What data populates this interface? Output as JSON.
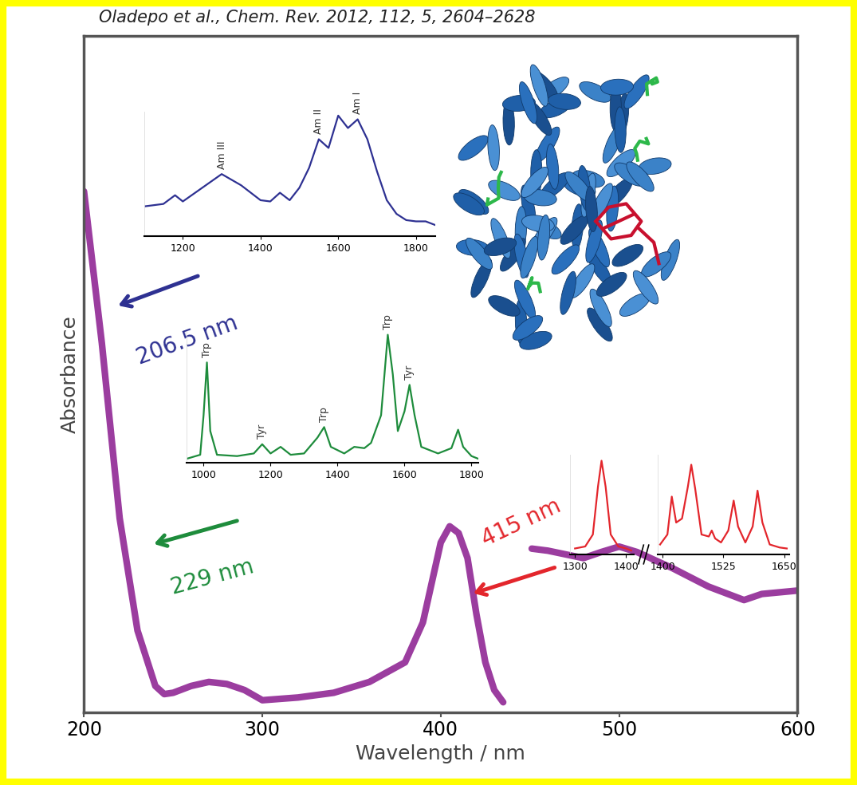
{
  "chart_data": [
    {
      "type": "line",
      "title": "Oladepo et al., Chem. Rev. 2012, 112, 5, 2604–2628",
      "x_label": "Wavelength / nm",
      "y_label": "Absorbance",
      "x": [
        200,
        210,
        220,
        230,
        240,
        245,
        250,
        260,
        270,
        280,
        290,
        300,
        310,
        320,
        340,
        360,
        380,
        390,
        395,
        400,
        405,
        410,
        415,
        420,
        425,
        430,
        435,
        442,
        451,
        460,
        480,
        490,
        500,
        510,
        530,
        550,
        570,
        580,
        600
      ],
      "values": [
        0.77,
        0.546,
        0.287,
        0.121,
        0.039,
        0.027,
        0.029,
        0.039,
        0.045,
        0.042,
        0.033,
        0.018,
        0.02,
        0.022,
        0.029,
        0.045,
        0.074,
        0.133,
        0.192,
        0.251,
        0.275,
        0.265,
        0.228,
        0.145,
        0.074,
        0.033,
        0.015,
        null,
        0.242,
        0.239,
        0.228,
        0.237,
        0.245,
        0.237,
        0.213,
        0.186,
        0.166,
        0.175,
        0.18
      ],
      "color": "#9b3d9f",
      "xlim": [
        200,
        600
      ],
      "xticks": [
        200,
        300,
        400,
        500,
        600
      ],
      "ylim": [
        0,
        1
      ],
      "tick_labels": "x",
      "annotations": [
        {
          "text": "206.5 nm",
          "color": "#2e3192"
        },
        {
          "text": "229 nm",
          "color": "#1e8c3c"
        },
        {
          "text": "415 nm",
          "color": "#e3262c"
        }
      ]
    },
    {
      "type": "line",
      "x": [
        1100,
        1150,
        1180,
        1200,
        1250,
        1300,
        1350,
        1400,
        1425,
        1450,
        1475,
        1500,
        1525,
        1550,
        1575,
        1600,
        1625,
        1650,
        1675,
        1700,
        1725,
        1750,
        1775,
        1800,
        1825,
        1850
      ],
      "values": [
        0.24,
        0.26,
        0.33,
        0.28,
        0.39,
        0.5,
        0.41,
        0.29,
        0.28,
        0.35,
        0.29,
        0.39,
        0.55,
        0.78,
        0.71,
        0.97,
        0.87,
        0.94,
        0.78,
        0.52,
        0.29,
        0.18,
        0.13,
        0.12,
        0.12,
        0.09
      ],
      "color": "#2e3192",
      "xlim": [
        1100,
        1850
      ],
      "xticks": [
        1200,
        1400,
        1600,
        1800
      ],
      "ylim": [
        0,
        1
      ],
      "tick_labels": "x",
      "peak_labels": [
        {
          "x": 1300,
          "label": "Am III"
        },
        {
          "x": 1550,
          "label": "Am II"
        },
        {
          "x": 1650,
          "label": "Am I"
        }
      ]
    },
    {
      "type": "line",
      "x": [
        950,
        990,
        1000,
        1010,
        1020,
        1040,
        1100,
        1150,
        1175,
        1200,
        1230,
        1260,
        1300,
        1340,
        1360,
        1380,
        1420,
        1450,
        1480,
        1500,
        1530,
        1550,
        1565,
        1580,
        1600,
        1615,
        1630,
        1650,
        1700,
        1740,
        1760,
        1775,
        1800,
        1820
      ],
      "values": [
        0.03,
        0.06,
        0.36,
        0.76,
        0.24,
        0.06,
        0.05,
        0.07,
        0.14,
        0.07,
        0.12,
        0.06,
        0.07,
        0.19,
        0.27,
        0.12,
        0.07,
        0.12,
        0.11,
        0.15,
        0.36,
        0.97,
        0.67,
        0.24,
        0.39,
        0.59,
        0.36,
        0.12,
        0.07,
        0.11,
        0.25,
        0.12,
        0.05,
        0.03
      ],
      "color": "#1e8c3c",
      "xlim": [
        950,
        1820
      ],
      "xticks": [
        1000,
        1200,
        1400,
        1600,
        1800
      ],
      "ylim": [
        0,
        1
      ],
      "tick_labels": "x",
      "peak_labels": [
        {
          "x": 1010,
          "label": "Trp"
        },
        {
          "x": 1175,
          "label": "Tyr"
        },
        {
          "x": 1360,
          "label": "Trp"
        },
        {
          "x": 1550,
          "label": "Trp"
        },
        {
          "x": 1615,
          "label": "Tyr"
        }
      ]
    },
    {
      "type": "line",
      "x": [
        1300,
        1320,
        1335,
        1345,
        1352,
        1360,
        1370,
        1385,
        1400,
        1410
      ],
      "values": [
        0.06,
        0.08,
        0.2,
        0.68,
        0.94,
        0.68,
        0.2,
        0.08,
        0.06,
        0.04
      ],
      "color": "#e3262c",
      "xlim": [
        1290,
        1415
      ],
      "xticks": [
        1300,
        1400
      ],
      "ylim": [
        0,
        1
      ],
      "tick_labels": "x"
    },
    {
      "type": "line",
      "x": [
        1395,
        1410,
        1419,
        1428,
        1440,
        1452,
        1459,
        1467,
        1480,
        1495,
        1501,
        1508,
        1520,
        1535,
        1546,
        1555,
        1570,
        1585,
        1595,
        1605,
        1620,
        1640,
        1655
      ],
      "values": [
        0.1,
        0.2,
        0.58,
        0.32,
        0.36,
        0.68,
        0.9,
        0.66,
        0.2,
        0.18,
        0.24,
        0.16,
        0.12,
        0.24,
        0.54,
        0.28,
        0.12,
        0.28,
        0.64,
        0.32,
        0.1,
        0.07,
        0.06
      ],
      "color": "#e3262c",
      "xlim": [
        1390,
        1660
      ],
      "xticks": [
        1400,
        1525,
        1650
      ],
      "ylim": [
        0,
        1
      ],
      "tick_labels": "x"
    }
  ]
}
